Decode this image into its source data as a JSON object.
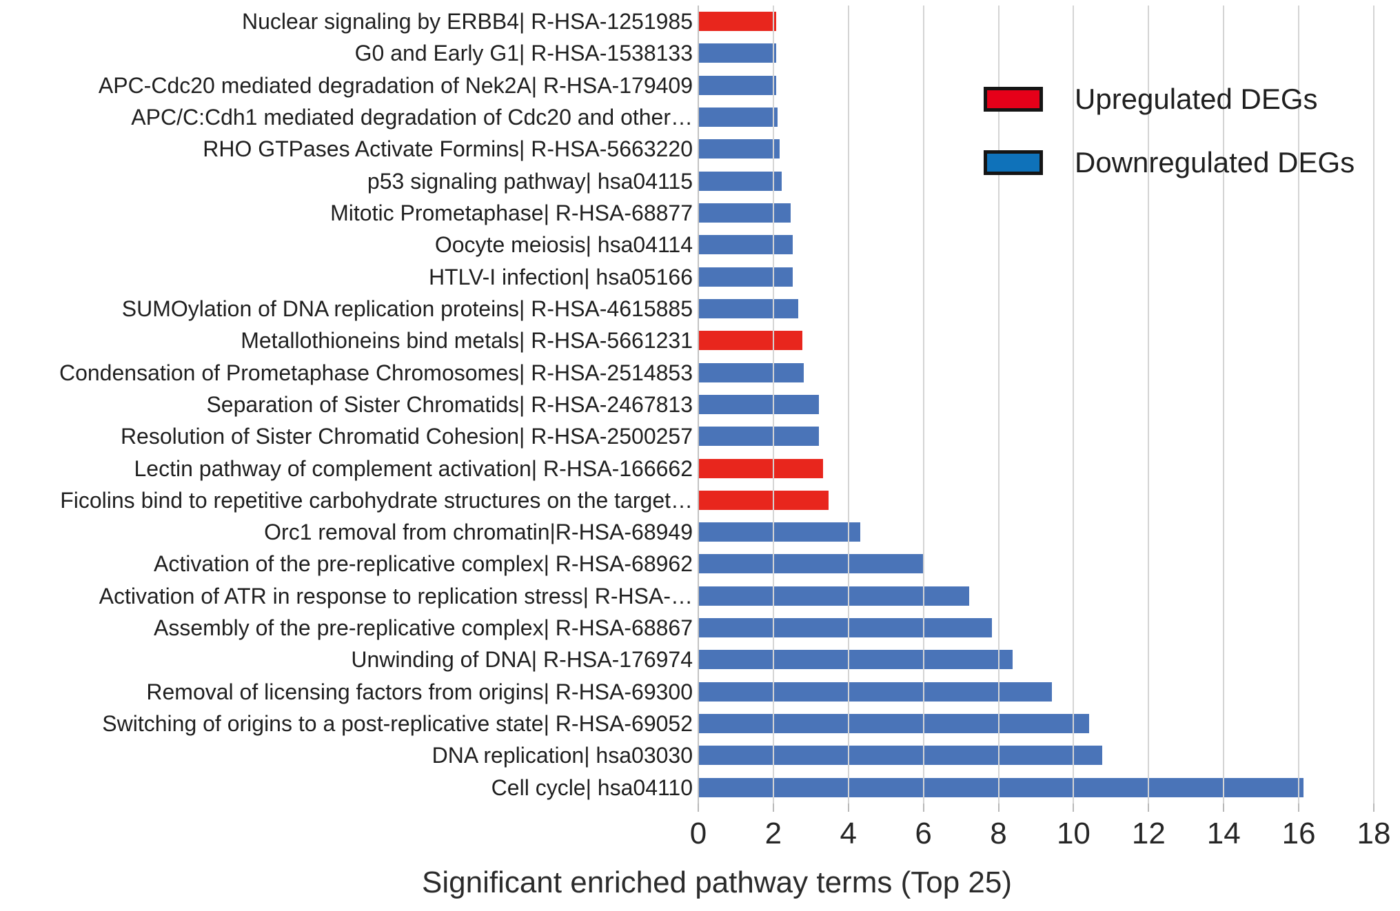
{
  "chart_data": {
    "type": "bar",
    "orientation": "horizontal",
    "title": "",
    "xlabel": "Significant enriched pathway terms (Top 25)",
    "ylabel": "",
    "xlim": [
      0,
      18
    ],
    "xticks": [
      0,
      2,
      4,
      6,
      8,
      10,
      12,
      14,
      16,
      18
    ],
    "grid": "vertical",
    "legend_position": "upper-right",
    "legend": [
      {
        "label": "Upregulated DEGs",
        "color": "#e60019"
      },
      {
        "label": "Downregulated DEGs",
        "color": "#0f72ba"
      }
    ],
    "bars": [
      {
        "label": "Nuclear signaling by ERBB4| R-HSA-1251985",
        "value": 2.05,
        "group": "up"
      },
      {
        "label": "G0 and Early G1| R-HSA-1538133",
        "value": 2.05,
        "group": "down"
      },
      {
        "label": "APC-Cdc20 mediated degradation of Nek2A| R-HSA-179409",
        "value": 2.05,
        "group": "down"
      },
      {
        "label": "APC/C:Cdh1 mediated degradation of Cdc20 and other…",
        "value": 2.1,
        "group": "down"
      },
      {
        "label": "RHO GTPases Activate Formins| R-HSA-5663220",
        "value": 2.15,
        "group": "down"
      },
      {
        "label": "p53 signaling pathway| hsa04115",
        "value": 2.2,
        "group": "down"
      },
      {
        "label": "Mitotic Prometaphase| R-HSA-68877",
        "value": 2.45,
        "group": "down"
      },
      {
        "label": "Oocyte meiosis| hsa04114",
        "value": 2.5,
        "group": "down"
      },
      {
        "label": "HTLV-I infection| hsa05166",
        "value": 2.5,
        "group": "down"
      },
      {
        "label": "SUMOylation of DNA replication proteins| R-HSA-4615885",
        "value": 2.65,
        "group": "down"
      },
      {
        "label": "Metallothioneins bind metals| R-HSA-5661231",
        "value": 2.75,
        "group": "up"
      },
      {
        "label": "Condensation of Prometaphase Chromosomes| R-HSA-2514853",
        "value": 2.8,
        "group": "down"
      },
      {
        "label": "Separation of Sister Chromatids| R-HSA-2467813",
        "value": 3.2,
        "group": "down"
      },
      {
        "label": "Resolution of Sister Chromatid Cohesion| R-HSA-2500257",
        "value": 3.2,
        "group": "down"
      },
      {
        "label": "Lectin pathway of complement activation| R-HSA-166662",
        "value": 3.3,
        "group": "up"
      },
      {
        "label": "Ficolins bind to repetitive carbohydrate structures on the target…",
        "value": 3.45,
        "group": "up"
      },
      {
        "label": "Orc1 removal from chromatin|R-HSA-68949",
        "value": 4.3,
        "group": "down"
      },
      {
        "label": "Activation of the pre-replicative complex| R-HSA-68962",
        "value": 6.0,
        "group": "down"
      },
      {
        "label": "Activation of ATR in response to replication stress| R-HSA-…",
        "value": 7.2,
        "group": "down"
      },
      {
        "label": "Assembly of the pre-replicative complex| R-HSA-68867",
        "value": 7.8,
        "group": "down"
      },
      {
        "label": "Unwinding of DNA| R-HSA-176974",
        "value": 8.35,
        "group": "down"
      },
      {
        "label": "Removal of licensing factors from origins| R-HSA-69300",
        "value": 9.4,
        "group": "down"
      },
      {
        "label": "Switching of origins to a post-replicative state| R-HSA-69052",
        "value": 10.4,
        "group": "down"
      },
      {
        "label": "DNA replication| hsa03030",
        "value": 10.75,
        "group": "down"
      },
      {
        "label": "Cell cycle| hsa04110",
        "value": 16.1,
        "group": "down"
      }
    ]
  },
  "colors": {
    "bar_up": "#e8261d",
    "bar_down": "#4a74b8",
    "legend_up_swatch": "#e60019",
    "legend_down_swatch": "#0f72ba",
    "gridline": "#d4d4d4",
    "text": "#1f1f1f"
  }
}
